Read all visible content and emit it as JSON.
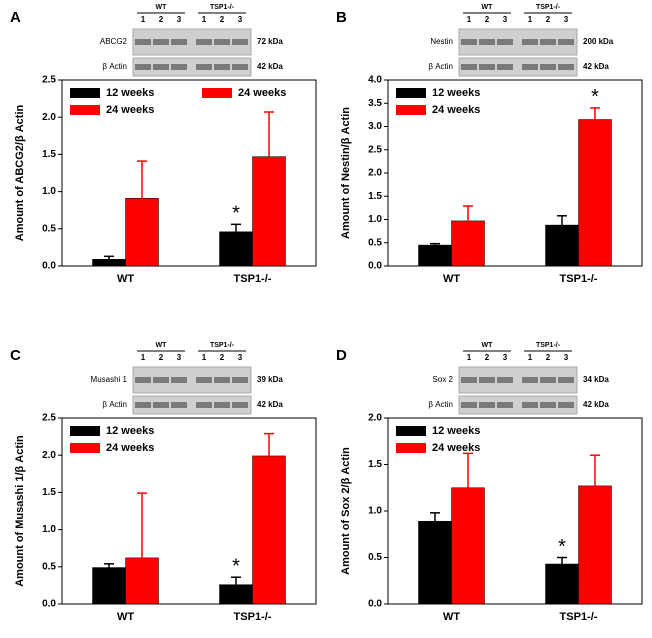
{
  "chart_data": [
    {
      "type": "bar",
      "panel": "A",
      "ylabel": "Amount of ABCG2/β Actin",
      "categories": [
        "WT",
        "TSP1-/-"
      ],
      "series": [
        {
          "name": "12 weeks",
          "color": "#000000",
          "values": [
            0.09,
            0.46
          ],
          "errors": [
            0.04,
            0.1
          ],
          "significance": [
            null,
            "*"
          ]
        },
        {
          "name": "24 weeks",
          "color": "#ff0000",
          "values": [
            0.91,
            1.47
          ],
          "errors": [
            0.5,
            0.6
          ],
          "significance": [
            null,
            null
          ]
        }
      ],
      "extra_legend": {
        "name": "24 weeks",
        "color": "#ff0000"
      },
      "ylim": [
        0,
        2.5
      ],
      "yticks": [
        {
          "value": 0,
          "label": "0.0"
        },
        0.5,
        {
          "value": 1,
          "label": "1.0"
        },
        1.5,
        {
          "value": 2,
          "label": "2.0"
        },
        2.5
      ],
      "blot": {
        "groups": [
          "WT",
          "TSP1-/-"
        ],
        "lanes": [
          "1",
          "2",
          "3",
          "1",
          "2",
          "3"
        ],
        "rows": [
          {
            "label": "ABCG2",
            "size": "72 kDa"
          },
          {
            "label": "β Actin",
            "size": "42 kDa"
          }
        ]
      }
    },
    {
      "type": "bar",
      "panel": "B",
      "ylabel": "Amount of Nestin/β Actin",
      "categories": [
        "WT",
        "TSP1-/-"
      ],
      "series": [
        {
          "name": "12 weeks",
          "color": "#000000",
          "values": [
            0.45,
            0.88
          ],
          "errors": [
            0.03,
            0.2
          ],
          "significance": [
            null,
            null
          ]
        },
        {
          "name": "24 weeks",
          "color": "#ff0000",
          "values": [
            0.97,
            3.15
          ],
          "errors": [
            0.32,
            0.25
          ],
          "significance": [
            null,
            "*"
          ]
        }
      ],
      "ylim": [
        0,
        4
      ],
      "yticks": [
        {
          "value": 0,
          "label": "0.0"
        },
        0.5,
        {
          "value": 1,
          "label": "1.0"
        },
        1.5,
        {
          "value": 2,
          "label": "2.0"
        },
        2.5,
        {
          "value": 3,
          "label": "3.0"
        },
        3.5,
        {
          "value": 4,
          "label": "4.0"
        }
      ],
      "blot": {
        "groups": [
          "WT",
          "TSP1-/-"
        ],
        "lanes": [
          "1",
          "2",
          "3",
          "1",
          "2",
          "3"
        ],
        "rows": [
          {
            "label": "Nestin",
            "size": "200 kDa"
          },
          {
            "label": "β Actin",
            "size": "42 kDa"
          }
        ]
      }
    },
    {
      "type": "bar",
      "panel": "C",
      "ylabel": "Amount of Musashi 1/β Actin",
      "categories": [
        "WT",
        "TSP1-/-"
      ],
      "series": [
        {
          "name": "12 weeks",
          "color": "#000000",
          "values": [
            0.49,
            0.26
          ],
          "errors": [
            0.05,
            0.1
          ],
          "significance": [
            null,
            "*"
          ]
        },
        {
          "name": "24 weeks",
          "color": "#ff0000",
          "values": [
            0.62,
            1.99
          ],
          "errors": [
            0.87,
            0.3
          ],
          "significance": [
            null,
            null
          ]
        }
      ],
      "ylim": [
        0,
        2.5
      ],
      "yticks": [
        {
          "value": 0,
          "label": "0.0"
        },
        0.5,
        {
          "value": 1,
          "label": "1.0"
        },
        1.5,
        {
          "value": 2,
          "label": "2.0"
        },
        2.5
      ],
      "blot": {
        "groups": [
          "WT",
          "TSP1-/-"
        ],
        "lanes": [
          "1",
          "2",
          "3",
          "1",
          "2",
          "3"
        ],
        "rows": [
          {
            "label": "Musashi 1",
            "size": "39 kDa"
          },
          {
            "label": "β Actin",
            "size": "42 kDa"
          }
        ]
      }
    },
    {
      "type": "bar",
      "panel": "D",
      "ylabel": "Amount of Sox 2/β Actin",
      "categories": [
        "WT",
        "TSP1-/-"
      ],
      "series": [
        {
          "name": "12 weeks",
          "color": "#000000",
          "values": [
            0.89,
            0.43
          ],
          "errors": [
            0.09,
            0.07
          ],
          "significance": [
            null,
            "*"
          ]
        },
        {
          "name": "24 weeks",
          "color": "#ff0000",
          "values": [
            1.25,
            1.27
          ],
          "errors": [
            0.37,
            0.33
          ],
          "significance": [
            null,
            null
          ]
        }
      ],
      "ylim": [
        0,
        2
      ],
      "yticks": [
        {
          "value": 0,
          "label": "0.0"
        },
        0.5,
        {
          "value": 1,
          "label": "1.0"
        },
        1.5,
        {
          "value": 2,
          "label": "2.0"
        }
      ],
      "blot": {
        "groups": [
          "WT",
          "TSP1-/-"
        ],
        "lanes": [
          "1",
          "2",
          "3",
          "1",
          "2",
          "3"
        ],
        "rows": [
          {
            "label": "Sox 2",
            "size": "34 kDa"
          },
          {
            "label": "β Actin",
            "size": "42 kDa"
          }
        ]
      }
    }
  ]
}
